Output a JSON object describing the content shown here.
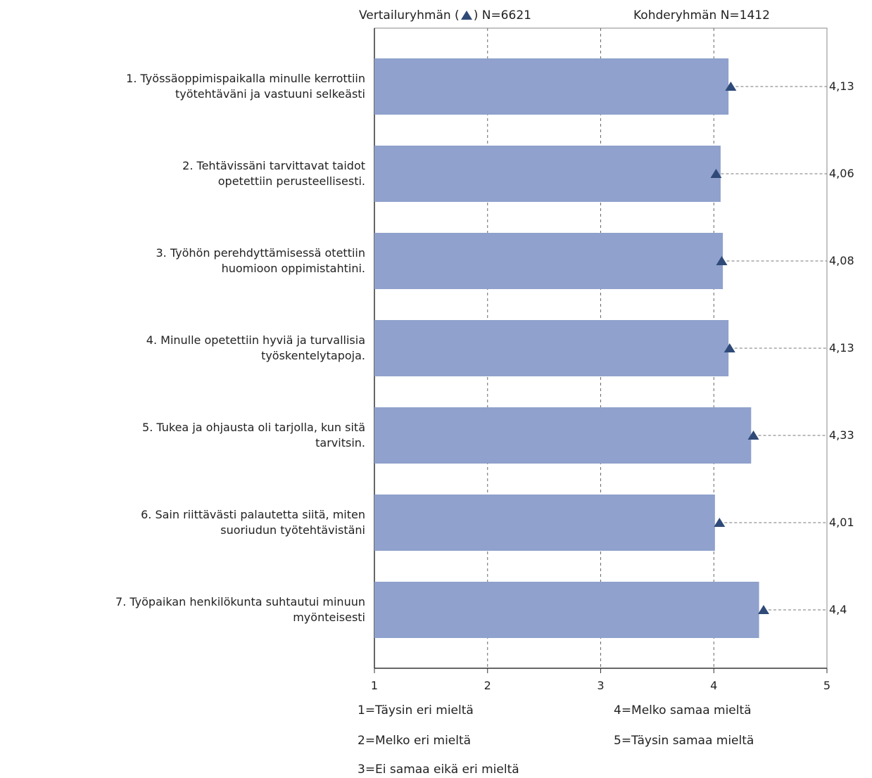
{
  "header": {
    "reference_prefix": "Vertailuryhmän (",
    "reference_suffix": ") N=6621",
    "target_label": "Kohderyhmän N=1412"
  },
  "chart_data": {
    "type": "bar",
    "orientation": "horizontal",
    "categories": [
      "1. Työssäoppimispaikalla minulle kerrottiin\ntyötehtäväni ja vastuuni selkeästi",
      "2. Tehtävissäni tarvittavat taidot\nopetettiin perusteellisesti.",
      "3. Työhön perehdyttämisessä otettiin\nhuomioon oppimistahtini.",
      "4. Minulle opetettiin hyviä ja turvallisia\ntyöskentelytapoja.",
      "5. Tukea ja ohjausta oli tarjolla, kun sitä\ntarvitsin.",
      "6. Sain riittävästi palautetta siitä, miten\nsuoriudun työtehtävistäni",
      "7. Työpaikan henkilökunta suhtautui minuun\nmyönteisesti"
    ],
    "values": [
      4.13,
      4.06,
      4.08,
      4.13,
      4.33,
      4.01,
      4.4
    ],
    "value_labels": [
      "4,13",
      "4,06",
      "4,08",
      "4,13",
      "4,33",
      "4,01",
      "4,4"
    ],
    "reference_values": [
      4.15,
      4.02,
      4.07,
      4.14,
      4.35,
      4.05,
      4.44
    ],
    "xlim": [
      1,
      5
    ],
    "xticks": [
      "1",
      "2",
      "3",
      "4",
      "5"
    ],
    "grid": "vertical-dashed",
    "bar_color": "#8fa1cc",
    "marker_color": "#2f4a78"
  },
  "legend": {
    "items": [
      "1=Täysin eri mieltä",
      "2=Melko eri mieltä",
      "3=Ei samaa eikä eri mieltä",
      "4=Melko samaa mieltä",
      "5=Täysin samaa mieltä"
    ]
  }
}
